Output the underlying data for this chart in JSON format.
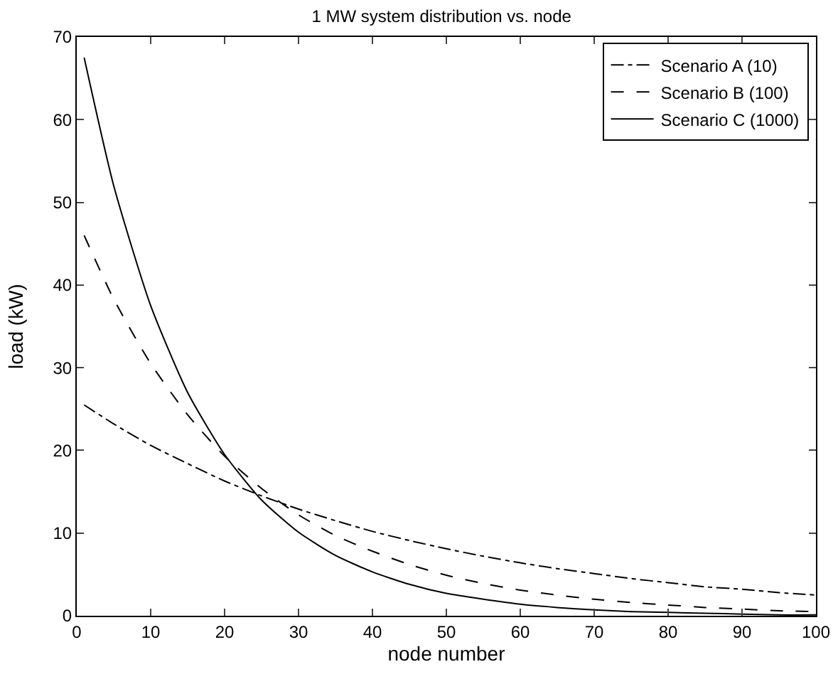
{
  "chart_data": {
    "type": "line",
    "title": "1 MW system distribution vs. node",
    "xlabel": "node number",
    "ylabel": "load (kW)",
    "x": [
      1,
      5,
      10,
      15,
      20,
      25,
      30,
      35,
      40,
      45,
      50,
      55,
      60,
      65,
      70,
      75,
      80,
      85,
      90,
      95,
      100
    ],
    "series": [
      {
        "name": "Scenario A (10)",
        "color": "#000000",
        "line_style": "dashdot",
        "values": [
          25.5,
          23.2,
          20.6,
          18.4,
          16.3,
          14.5,
          12.9,
          11.5,
          10.2,
          9.1,
          8.1,
          7.2,
          6.4,
          5.7,
          5.1,
          4.5,
          4.0,
          3.5,
          3.2,
          2.8,
          2.5
        ]
      },
      {
        "name": "Scenario B (100)",
        "color": "#000000",
        "line_style": "dashed",
        "values": [
          46,
          38.3,
          30.5,
          24.3,
          19.3,
          15.4,
          12.2,
          9.7,
          7.8,
          6.2,
          4.9,
          3.9,
          3.1,
          2.5,
          2.0,
          1.6,
          1.3,
          1.0,
          0.8,
          0.6,
          0.5
        ]
      },
      {
        "name": "Scenario C (1000)",
        "color": "#000000",
        "line_style": "solid",
        "values": [
          67.5,
          52.0,
          37.5,
          27.0,
          19.5,
          14.0,
          10.1,
          7.3,
          5.3,
          3.8,
          2.7,
          2.0,
          1.4,
          1.0,
          0.7,
          0.5,
          0.4,
          0.3,
          0.2,
          0.1,
          0.1
        ]
      }
    ],
    "xlim": [
      0,
      100
    ],
    "xticks": [
      0,
      10,
      20,
      30,
      40,
      50,
      60,
      70,
      80,
      90,
      100
    ],
    "ylim": [
      0,
      70
    ],
    "yticks": [
      0,
      10,
      20,
      30,
      40,
      50,
      60,
      70
    ],
    "grid": false,
    "legend": "top right",
    "marker": "none"
  }
}
